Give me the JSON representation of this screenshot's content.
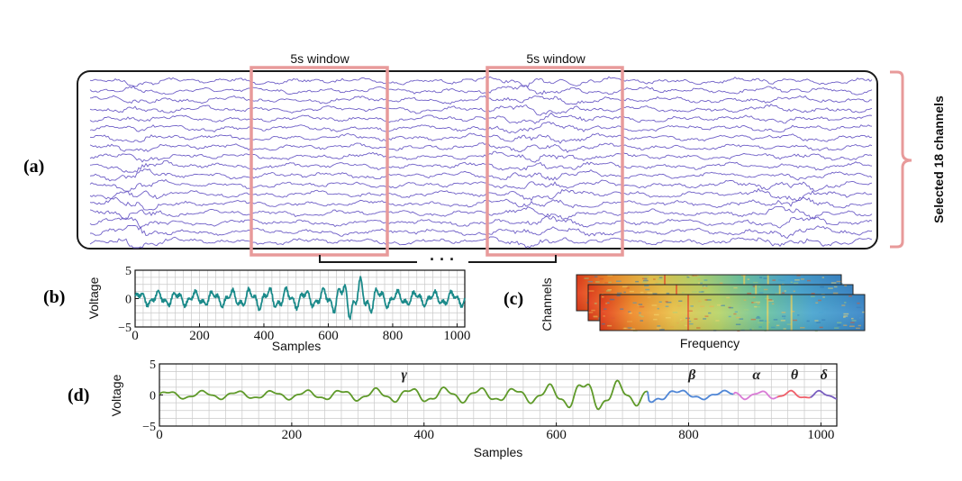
{
  "panels": {
    "a": {
      "label": "(a)",
      "channel_count": 18,
      "window_label": "5s window",
      "brace_label": "Selected 18 channels",
      "ellipsis": "· · ·"
    },
    "b": {
      "label": "(b)",
      "ylabel": "Voltage",
      "xlabel": "Samples"
    },
    "c": {
      "label": "(c)",
      "ylabel": "Channels",
      "xlabel": "Frequency"
    },
    "d": {
      "label": "(d)",
      "ylabel": "Voltage",
      "xlabel": "Samples"
    }
  },
  "colors": {
    "eeg": "#6f5fc7",
    "window": "#e89a9a",
    "brace": "#e89a9a",
    "teal": "#1b8a8a",
    "gamma": "#5f9a2a",
    "beta": "#4f86d6",
    "alpha": "#d97bd6",
    "theta": "#ef5f6a",
    "delta": "#7a5fc0"
  },
  "chart_data": [
    {
      "type": "line",
      "panel": "b",
      "xlabel": "Samples",
      "ylabel": "Voltage",
      "xlim": [
        0,
        1024
      ],
      "ylim": [
        -5,
        5
      ],
      "xticks": [
        0,
        200,
        400,
        600,
        800,
        1000
      ],
      "yticks": [
        -5,
        0,
        5
      ],
      "grid": true
    },
    {
      "type": "line",
      "panel": "d",
      "xlabel": "Samples",
      "ylabel": "Voltage",
      "xlim": [
        0,
        1024
      ],
      "ylim": [
        -5,
        5
      ],
      "xticks": [
        0,
        200,
        400,
        600,
        800,
        1000
      ],
      "yticks": [
        -5,
        0,
        5
      ],
      "grid": true,
      "bands": [
        {
          "name": "γ",
          "start": 0,
          "end": 740,
          "color": "#5f9a2a"
        },
        {
          "name": "β",
          "start": 740,
          "end": 870,
          "color": "#4f86d6"
        },
        {
          "name": "α",
          "start": 870,
          "end": 935,
          "color": "#d97bd6"
        },
        {
          "name": "θ",
          "start": 935,
          "end": 985,
          "color": "#ef5f6a"
        },
        {
          "name": "δ",
          "start": 985,
          "end": 1024,
          "color": "#7a5fc0"
        }
      ]
    }
  ]
}
